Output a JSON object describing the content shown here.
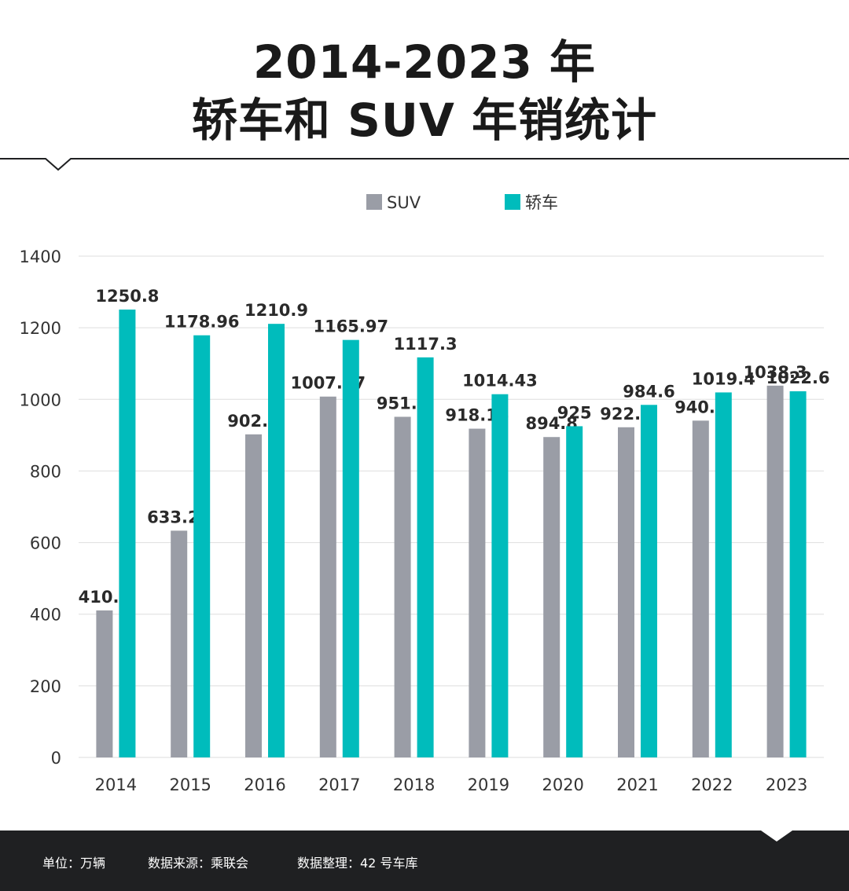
{
  "title": {
    "line1": "2014-2023 年",
    "line2": "轿车和 SUV 年销统计"
  },
  "chart_data": {
    "type": "bar",
    "categories": [
      "2014",
      "2015",
      "2016",
      "2017",
      "2018",
      "2019",
      "2020",
      "2021",
      "2022",
      "2023"
    ],
    "series": [
      {
        "name": "SUV",
        "color": "#9a9da6",
        "values": [
          410.6,
          633.27,
          902.3,
          1007.77,
          951.3,
          918.16,
          894.8,
          922.1,
          940.6,
          1038.3
        ],
        "labels": [
          "410.6",
          "633.27",
          "902.3",
          "1007.77",
          "951.3",
          "918.16",
          "894.8",
          "922.1",
          "940.6",
          "1038.3"
        ]
      },
      {
        "name": "轿车",
        "color": "#00bcbc",
        "values": [
          1250.8,
          1178.96,
          1210.9,
          1165.97,
          1117.3,
          1014.43,
          925,
          984.6,
          1019.4,
          1022.6
        ],
        "labels": [
          "1250.8",
          "1178.96",
          "1210.9",
          "1165.97",
          "1117.3",
          "1014.43",
          "925",
          "984.6",
          "1019.4",
          "1022.6"
        ]
      }
    ],
    "yticks": [
      "0",
      "200",
      "400",
      "600",
      "800",
      "1000",
      "1200",
      "1400"
    ],
    "ylim": [
      0,
      1400
    ],
    "grid": true,
    "legend_position": "top-center"
  },
  "footer": {
    "unit": "单位：万辆",
    "source": "数据来源：乘联会",
    "compiled": "数据整理：42 号车库"
  },
  "colors": {
    "footer_bg": "#1f2022",
    "grid": "#dedede"
  }
}
